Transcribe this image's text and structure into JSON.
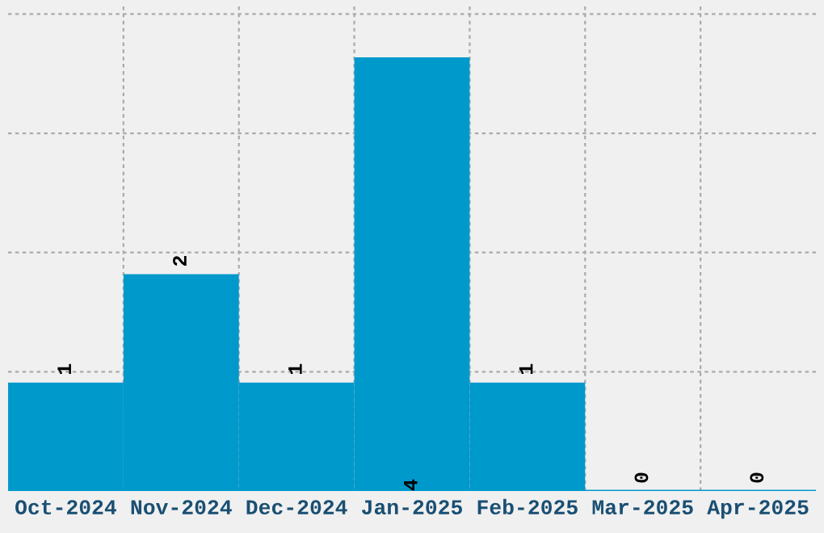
{
  "chart_data": {
    "type": "bar",
    "categories": [
      "Oct-2024",
      "Nov-2024",
      "Dec-2024",
      "Jan-2025",
      "Feb-2025",
      "Mar-2025",
      "Apr-2025"
    ],
    "values": [
      1,
      2,
      1,
      4,
      1,
      0,
      0
    ],
    "color": "#0099cc",
    "ylim": [
      0,
      4.47
    ],
    "yticks": [
      {
        "value": 1.1,
        "label": null
      },
      {
        "value": 2.2,
        "label": null
      },
      {
        "value": 3.3,
        "label": null
      },
      {
        "value": 4.4,
        "label": null
      }
    ],
    "tick_labels": "x",
    "grid": true,
    "data_labels": true
  }
}
